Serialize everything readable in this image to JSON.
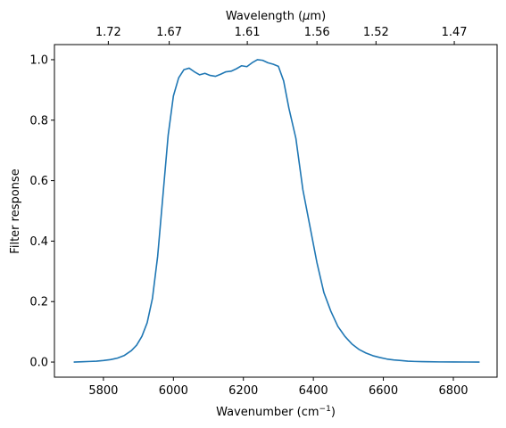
{
  "chart_data": {
    "type": "line",
    "xlabel": "Wavenumber (cm",
    "xlabel_sup": "−1",
    "xlabel_end": ")",
    "top_xlabel": "Wavelength (",
    "top_xlabel_mu": "μ",
    "top_xlabel_end": "m)",
    "ylabel": "Filter response",
    "xlim": [
      5660,
      6925
    ],
    "ylim": [
      -0.05,
      1.05
    ],
    "x_ticks": [
      5800,
      6000,
      6200,
      6400,
      6600,
      6800
    ],
    "x_tick_labels": [
      "5800",
      "6000",
      "6200",
      "6400",
      "6600",
      "6800"
    ],
    "y_ticks": [
      0.0,
      0.2,
      0.4,
      0.6,
      0.8,
      1.0
    ],
    "y_tick_labels": [
      "0.0",
      "0.2",
      "0.4",
      "0.6",
      "0.8",
      "1.0"
    ],
    "top_ticks_wavelength_um": [
      1.72,
      1.67,
      1.61,
      1.56,
      1.52,
      1.47
    ],
    "top_tick_labels": [
      "1.72",
      "1.67",
      "1.61",
      "1.56",
      "1.52",
      "1.47"
    ],
    "grid": false,
    "series": [
      {
        "color": "#1f77b4",
        "x": [
          5715,
          5740,
          5760,
          5780,
          5800,
          5820,
          5840,
          5860,
          5880,
          5895,
          5910,
          5925,
          5940,
          5955,
          5970,
          5985,
          6000,
          6015,
          6030,
          6045,
          6060,
          6075,
          6090,
          6105,
          6120,
          6135,
          6150,
          6165,
          6180,
          6195,
          6210,
          6225,
          6240,
          6255,
          6270,
          6285,
          6300,
          6315,
          6330,
          6350,
          6370,
          6390,
          6410,
          6430,
          6450,
          6470,
          6490,
          6510,
          6530,
          6550,
          6570,
          6590,
          6610,
          6630,
          6650,
          6670,
          6690,
          6710,
          6730,
          6760,
          6800,
          6840,
          6875
        ],
        "y": [
          0.0,
          0.001,
          0.002,
          0.003,
          0.005,
          0.008,
          0.013,
          0.022,
          0.038,
          0.056,
          0.085,
          0.13,
          0.21,
          0.35,
          0.55,
          0.75,
          0.88,
          0.94,
          0.967,
          0.972,
          0.96,
          0.95,
          0.955,
          0.948,
          0.945,
          0.952,
          0.96,
          0.962,
          0.97,
          0.98,
          0.977,
          0.99,
          1.0,
          0.998,
          0.99,
          0.985,
          0.978,
          0.93,
          0.84,
          0.74,
          0.57,
          0.45,
          0.33,
          0.23,
          0.168,
          0.118,
          0.085,
          0.06,
          0.042,
          0.03,
          0.021,
          0.015,
          0.01,
          0.007,
          0.005,
          0.003,
          0.002,
          0.0015,
          0.001,
          0.0005,
          0.0003,
          0.0001,
          0.0
        ]
      }
    ]
  }
}
